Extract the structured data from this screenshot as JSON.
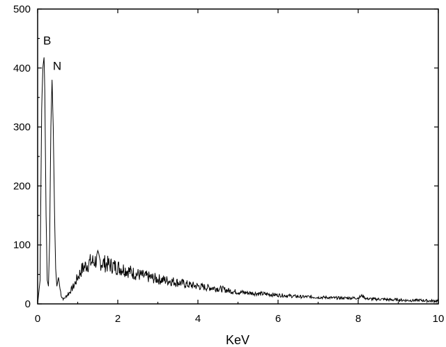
{
  "chart_data": {
    "type": "line",
    "title": "",
    "xlabel": "KeV",
    "ylabel": "",
    "xlim": [
      0,
      10
    ],
    "ylim": [
      0,
      500
    ],
    "x_ticks": [
      0,
      2,
      4,
      6,
      8,
      10
    ],
    "y_ticks": [
      0,
      100,
      200,
      300,
      400,
      500
    ],
    "grid": false,
    "legend": "none",
    "line_color": "#000000",
    "annotations": [
      {
        "text": "B",
        "x": 0.14,
        "y": 440
      },
      {
        "text": "N",
        "x": 0.38,
        "y": 397
      }
    ],
    "series": [
      {
        "x": [
          0.0,
          0.06,
          0.1,
          0.13,
          0.16,
          0.18,
          0.21,
          0.24,
          0.27,
          0.3,
          0.33,
          0.36,
          0.39,
          0.42,
          0.45,
          0.48,
          0.52,
          0.56,
          0.6,
          0.65,
          0.7,
          0.8,
          0.9,
          1.0,
          1.1,
          1.2,
          1.3,
          1.4,
          1.5,
          1.6,
          1.7,
          1.8,
          2.0,
          2.2,
          2.4,
          2.6,
          2.8,
          3.0,
          3.2,
          3.4,
          3.6,
          3.8,
          4.0,
          4.2,
          4.4,
          4.6,
          4.8,
          5.0,
          5.2,
          5.4,
          5.6,
          5.8,
          6.0,
          6.2,
          6.4,
          6.6,
          6.8,
          7.0,
          7.2,
          7.4,
          7.6,
          7.8,
          8.0,
          8.1,
          8.2,
          8.4,
          8.6,
          8.8,
          9.0,
          9.2,
          9.4,
          9.6,
          9.8,
          10.0
        ],
        "y": [
          0,
          40,
          330,
          400,
          418,
          360,
          150,
          40,
          30,
          110,
          300,
          380,
          300,
          160,
          60,
          30,
          45,
          25,
          12,
          8,
          12,
          20,
          30,
          45,
          58,
          65,
          70,
          72,
          75,
          70,
          68,
          66,
          62,
          58,
          52,
          48,
          45,
          42,
          40,
          38,
          35,
          32,
          30,
          28,
          27,
          25,
          22,
          20,
          19,
          18,
          17,
          16,
          15,
          14,
          13,
          12,
          12,
          11,
          11,
          10,
          10,
          10,
          10,
          14,
          9,
          8,
          8,
          7,
          7,
          6,
          6,
          6,
          5,
          5
        ]
      }
    ]
  }
}
